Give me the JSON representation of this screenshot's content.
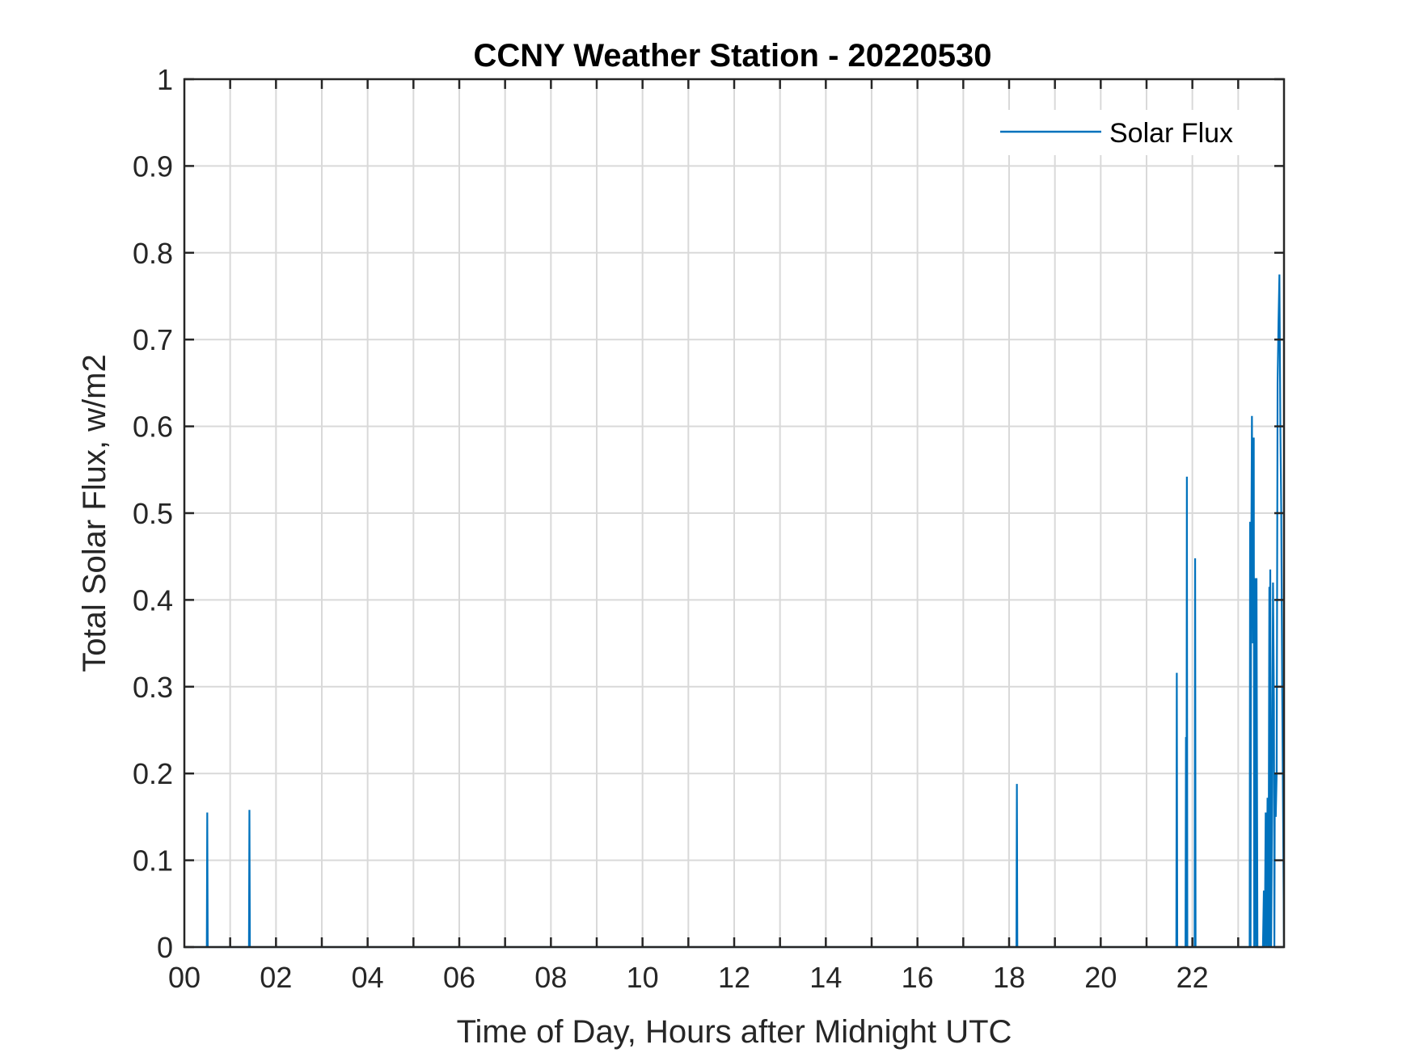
{
  "chart_data": {
    "type": "line",
    "title": "CCNY Weather Station - 20220530",
    "xlabel": "Time of Day, Hours after Midnight UTC",
    "ylabel": "Total Solar Flux, w/m2",
    "xlim": [
      0,
      24
    ],
    "ylim": [
      0,
      1
    ],
    "x_ticks": [
      0,
      2,
      4,
      6,
      8,
      10,
      12,
      14,
      16,
      18,
      20,
      22
    ],
    "x_tick_labels": [
      "00",
      "02",
      "04",
      "06",
      "08",
      "10",
      "12",
      "14",
      "16",
      "18",
      "20",
      "22"
    ],
    "y_ticks": [
      0,
      0.1,
      0.2,
      0.3,
      0.4,
      0.5,
      0.6,
      0.7,
      0.8,
      0.9,
      1
    ],
    "y_tick_labels": [
      "0",
      "0.1",
      "0.2",
      "0.3",
      "0.4",
      "0.5",
      "0.6",
      "0.7",
      "0.8",
      "0.9",
      "1"
    ],
    "grid": true,
    "legend_position": "top-right",
    "series": [
      {
        "name": "Solar Flux",
        "color": "#0072BD",
        "x": [
          0,
          0.49,
          0.5,
          0.51,
          1.41,
          1.42,
          1.43,
          18.16,
          18.17,
          18.18,
          21.65,
          21.66,
          21.67,
          21.85,
          21.86,
          21.87,
          21.88,
          21.89,
          21.9,
          22.05,
          22.06,
          22.07,
          23.25,
          23.26,
          23.27,
          23.28,
          23.3,
          23.32,
          23.34,
          23.35,
          23.37,
          23.39,
          23.4,
          23.42,
          23.44,
          23.46,
          23.47,
          23.48,
          23.5,
          23.52,
          23.54,
          23.56,
          23.58,
          23.6,
          23.62,
          23.64,
          23.66,
          23.68,
          23.69,
          23.7,
          23.72,
          23.74,
          23.76,
          23.78,
          23.79,
          23.8,
          23.82,
          23.84,
          23.86,
          23.88,
          23.9,
          23.92,
          23.94,
          23.96,
          23.98,
          24.0
        ],
        "values": [
          0,
          0,
          0.155,
          0,
          0,
          0.158,
          0,
          0,
          0.188,
          0,
          0,
          0.316,
          0,
          0,
          0.242,
          0,
          0.542,
          0,
          0,
          0,
          0.448,
          0,
          0,
          0.49,
          0,
          0.38,
          0.612,
          0.35,
          0.587,
          0,
          0.425,
          0,
          0.425,
          0,
          0,
          0,
          0,
          0,
          0,
          0,
          0,
          0.065,
          0,
          0.155,
          0,
          0.172,
          0,
          0.415,
          0,
          0.435,
          0,
          0.18,
          0.42,
          0.28,
          0,
          0.2,
          0.15,
          0.2,
          0.65,
          0.72,
          0.775,
          0.6,
          0.5,
          0.3,
          0.15,
          0
        ]
      }
    ]
  }
}
